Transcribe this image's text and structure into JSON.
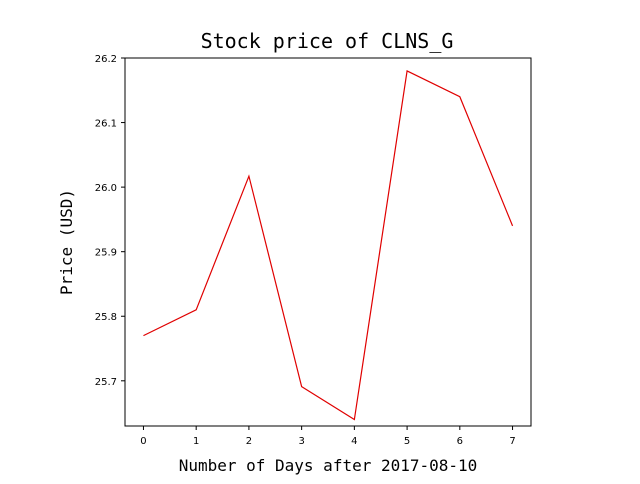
{
  "chart_data": {
    "type": "line",
    "title": "Stock price of CLNS_G",
    "xlabel": "Number of Days after 2017-08-10",
    "ylabel": "Price (USD)",
    "x": [
      0,
      1,
      2,
      3,
      4,
      5,
      6,
      7
    ],
    "xticks": [
      "0",
      "1",
      "2",
      "3",
      "4",
      "5",
      "6",
      "7"
    ],
    "yticks": [
      "25.7",
      "25.8",
      "25.9",
      "26.0",
      "26.1",
      "26.2"
    ],
    "xlim": [
      -0.35,
      7.35
    ],
    "ylim": [
      25.63,
      26.2
    ],
    "series": [
      {
        "values": [
          25.77,
          25.81,
          26.017,
          25.691,
          25.64,
          26.18,
          26.14,
          25.94
        ],
        "color": "#e00000"
      }
    ],
    "grid": false,
    "legend": "none"
  }
}
